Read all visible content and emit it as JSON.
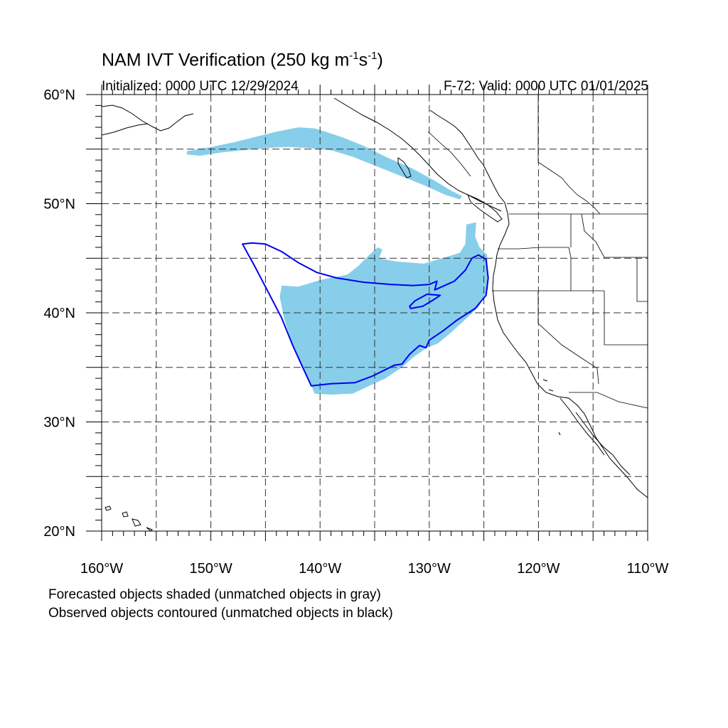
{
  "title": {
    "main": "NAM IVT Verification (250 kg m",
    "sup1": "-1",
    "mid": "s",
    "sup2": "-1",
    "end": ")"
  },
  "subtitle": {
    "initialized": "Initialized: 0000 UTC 12/29/2024",
    "valid": "F-72: Valid: 0000 UTC 01/01/2025"
  },
  "map": {
    "projection": "cylindrical-equidistant",
    "lon_range": [
      -160,
      -110
    ],
    "lat_range": [
      20,
      60
    ],
    "grid_major_lon": [
      -155,
      -150,
      -145,
      -140,
      -135,
      -130,
      -125,
      -120,
      -115
    ],
    "grid_major_lat": [
      25,
      30,
      35,
      40,
      45,
      50,
      55
    ],
    "lon_labels": [
      {
        "lon": -160,
        "text": "160°W"
      },
      {
        "lon": -150,
        "text": "150°W"
      },
      {
        "lon": -140,
        "text": "140°W"
      },
      {
        "lon": -130,
        "text": "130°W"
      },
      {
        "lon": -120,
        "text": "120°W"
      },
      {
        "lon": -110,
        "text": "110°W"
      }
    ],
    "lat_labels": [
      {
        "lat": 60,
        "text": "60°N"
      },
      {
        "lat": 50,
        "text": "50°N"
      },
      {
        "lat": 40,
        "text": "40°N"
      },
      {
        "lat": 30,
        "text": "30°N"
      },
      {
        "lat": 20,
        "text": "20°N"
      }
    ],
    "colors": {
      "forecast_fill": "#87ceeb",
      "observed_contour": "#0000ee",
      "coastline": "#000000",
      "grid": "#333333"
    },
    "forecast_objects": [
      [
        [
          -152.2,
          54.5
        ],
        [
          -152.2,
          54.8
        ],
        [
          -150,
          55.2
        ],
        [
          -148,
          55.6
        ],
        [
          -146,
          56.1
        ],
        [
          -144,
          56.6
        ],
        [
          -142,
          57.0
        ],
        [
          -140.5,
          56.9
        ],
        [
          -139.5,
          56.6
        ],
        [
          -138,
          56.1
        ],
        [
          -136,
          55.3
        ],
        [
          -134,
          54.3
        ],
        [
          -131.5,
          53.2
        ],
        [
          -129.5,
          52.1
        ],
        [
          -128,
          51.2
        ],
        [
          -127,
          50.7
        ],
        [
          -127.2,
          50.4
        ],
        [
          -128.5,
          50.8
        ],
        [
          -130.5,
          51.7
        ],
        [
          -133,
          52.7
        ],
        [
          -135,
          53.5
        ],
        [
          -137,
          54.3
        ],
        [
          -139,
          54.9
        ],
        [
          -141,
          55.1
        ],
        [
          -143,
          55.2
        ],
        [
          -145,
          55.1
        ],
        [
          -147,
          54.9
        ],
        [
          -149,
          54.7
        ],
        [
          -151,
          54.4
        ]
      ],
      [
        [
          -143.5,
          42.5
        ],
        [
          -142,
          42.4
        ],
        [
          -140,
          43.0
        ],
        [
          -137.5,
          43.5
        ],
        [
          -136.5,
          44.3
        ],
        [
          -135.5,
          45.3
        ],
        [
          -134.7,
          46.0
        ],
        [
          -134.3,
          45.8
        ],
        [
          -134.6,
          45.0
        ],
        [
          -133,
          44.7
        ],
        [
          -130.5,
          44.5
        ],
        [
          -128.5,
          45.1
        ],
        [
          -127.2,
          45.5
        ],
        [
          -126.7,
          46.3
        ],
        [
          -126.6,
          48.1
        ],
        [
          -125.7,
          48.3
        ],
        [
          -125.8,
          47.0
        ],
        [
          -125.4,
          46.0
        ],
        [
          -124.7,
          45.3
        ],
        [
          -124.6,
          42.2
        ],
        [
          -125.5,
          40.5
        ],
        [
          -126.8,
          39.3
        ],
        [
          -128,
          38.2
        ],
        [
          -129.2,
          37.2
        ],
        [
          -130.2,
          36.8
        ],
        [
          -131.5,
          35.9
        ],
        [
          -132.5,
          35.0
        ],
        [
          -134,
          34.0
        ],
        [
          -135.5,
          33.3
        ],
        [
          -137,
          32.6
        ],
        [
          -139,
          32.5
        ],
        [
          -140.5,
          32.6
        ],
        [
          -140.8,
          33.3
        ],
        [
          -141.5,
          34.8
        ],
        [
          -142.5,
          37.0
        ],
        [
          -143.3,
          39.5
        ],
        [
          -143.7,
          41.5
        ]
      ]
    ],
    "observed_objects": [
      [
        [
          -147.1,
          46.3
        ],
        [
          -146.2,
          46.4
        ],
        [
          -145,
          46.3
        ],
        [
          -143.5,
          45.6
        ],
        [
          -142,
          44.6
        ],
        [
          -140.3,
          43.7
        ],
        [
          -138.5,
          43.2
        ],
        [
          -136,
          42.8
        ],
        [
          -133.5,
          42.6
        ],
        [
          -131.5,
          42.5
        ],
        [
          -130,
          42.6
        ],
        [
          -129.3,
          42.9
        ],
        [
          -129.5,
          42.1
        ],
        [
          -127.7,
          42.9
        ],
        [
          -126.7,
          43.9
        ],
        [
          -126.1,
          45.0
        ],
        [
          -125.5,
          45.3
        ],
        [
          -124.8,
          44.9
        ],
        [
          -124.6,
          43.2
        ],
        [
          -124.8,
          41.6
        ],
        [
          -125.8,
          40.4
        ],
        [
          -127.5,
          39.3
        ],
        [
          -128.8,
          38.3
        ],
        [
          -130,
          37.5
        ],
        [
          -130.3,
          36.8
        ],
        [
          -130.9,
          37.0
        ],
        [
          -131.8,
          36.2
        ],
        [
          -132.5,
          35.3
        ],
        [
          -133.2,
          35.2
        ],
        [
          -134,
          34.8
        ],
        [
          -135.2,
          34.2
        ],
        [
          -136.8,
          33.6
        ],
        [
          -139,
          33.5
        ],
        [
          -140.8,
          33.3
        ],
        [
          -141.5,
          34.8
        ],
        [
          -142.5,
          37.0
        ],
        [
          -143.5,
          39.5
        ],
        [
          -144.8,
          42.0
        ],
        [
          -146,
          44.3
        ]
      ],
      [
        [
          -131.7,
          40.4
        ],
        [
          -130.6,
          40.6
        ],
        [
          -129.6,
          41.2
        ],
        [
          -129.0,
          41.6
        ],
        [
          -130.2,
          41.7
        ],
        [
          -131.3,
          41.1
        ],
        [
          -131.8,
          40.6
        ]
      ]
    ]
  },
  "notes": {
    "forecast": "Forecasted objects shaded (unmatched objects in gray)",
    "observed": "Observed objects contoured (unmatched objects in black)"
  }
}
